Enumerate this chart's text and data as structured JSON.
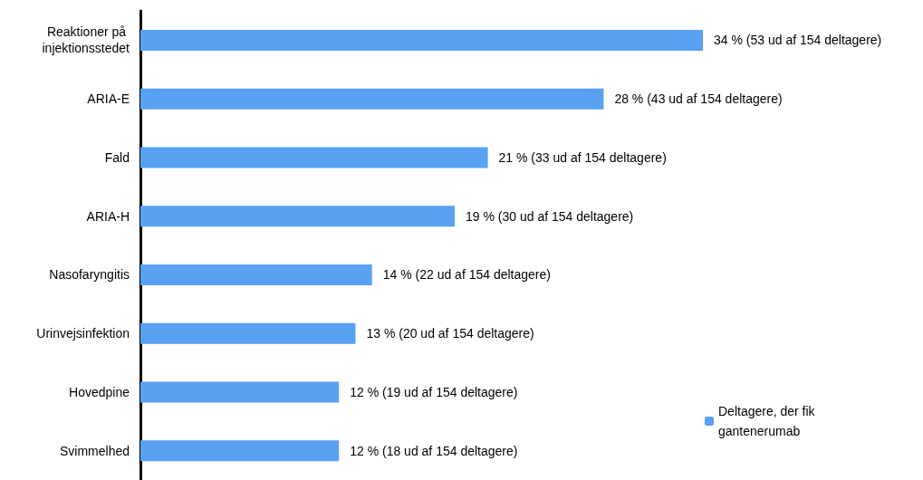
{
  "chart_data": {
    "type": "bar",
    "orientation": "horizontal",
    "categories": [
      "Reaktioner på injektionsstedet",
      "ARIA-E",
      "Fald",
      "ARIA-H",
      "Nasofaryngitis",
      "Urinvejsinfektion",
      "Hovedpine",
      "Svimmelhed"
    ],
    "series": [
      {
        "name": "Deltagere, der fik gantenerumab",
        "color": "#59a1f2",
        "values": [
          34,
          28,
          21,
          19,
          14,
          13,
          12,
          12
        ],
        "value_labels": [
          "34 % (53 ud af 154 deltagere)",
          "28 % (43 ud af 154 deltagere)",
          "21 % (33 ud af 154 deltagere)",
          "19 % (30 ud af 154 deltagere)",
          "14 % (22 ud af 154 deltagere)",
          "13 % (20 ud af 154 deltagere)",
          "12 % (19 ud af 154 deltagere)",
          "12 % (18 ud af 154 deltagere)"
        ]
      }
    ],
    "legend": "bottom right"
  }
}
